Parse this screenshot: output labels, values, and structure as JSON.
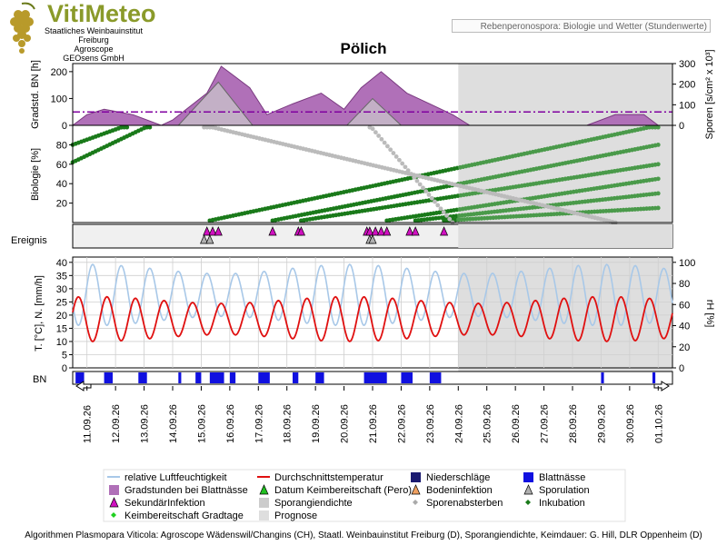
{
  "logo": {
    "brand": "VitiMeteo",
    "lines": [
      "Staatliches Weinbauinstitut Freiburg",
      "Agroscope",
      "GEOsens GmbH"
    ]
  },
  "subtitle": "Rebenperonospora: Biologie und Wetter (Stundenwerte)",
  "station": "Pölich",
  "footer": "Algorithmen Plasmopara Viticola: Agroscope Wädenswil/Changins (CH), Staatl. Weinbauinstitut Freiburg (D), Sporangiendichte, Keimdauer: G. Hill, DLR Oppenheim (D)",
  "colors": {
    "gradstunden": "#b070b8",
    "sporangien": "#cccccc",
    "prognose": "#dedede",
    "inkubation": "#1a7a1a",
    "sporen": "#bbbbbb",
    "temp": "#e01010",
    "humidity": "#a8c8e8",
    "blattnaesse": "#1010e0",
    "threshold": "#8000a0"
  },
  "chart_data": [
    {
      "type": "area",
      "panel": "gradstunden",
      "ylabel_left": "Gradstd. BN [h]",
      "ylabel_right": "Sporen [s/cm² x 10³]",
      "yticks_left": [
        "200",
        "100",
        "0"
      ],
      "yticks_right": [
        "300",
        "200",
        "100",
        "0"
      ],
      "ylim_left": [
        0,
        230
      ],
      "ylim_right": [
        0,
        300
      ],
      "threshold": 50,
      "x_days": [
        10.5,
        11.0,
        11.6,
        12.6,
        13.6,
        14.0,
        15.2,
        15.7,
        16.7,
        17.3,
        18.2,
        19.2,
        20.0,
        20.6,
        21.3,
        22.2,
        23.0,
        23.8,
        24.4
      ],
      "gradstunden": [
        0,
        40,
        60,
        40,
        0,
        20,
        120,
        220,
        140,
        40,
        80,
        120,
        60,
        140,
        200,
        120,
        80,
        40,
        0
      ],
      "sporangien_x": [
        14.2,
        15.6,
        16.8,
        20.1,
        21.0,
        22.0
      ],
      "sporangien": [
        0,
        210,
        0,
        0,
        130,
        0
      ],
      "prognose_gradstunden_x": [
        28.5,
        29.5,
        30.5,
        31.0
      ],
      "prognose_gradstunden": [
        0,
        40,
        40,
        0
      ]
    },
    {
      "type": "line",
      "panel": "biologie",
      "ylabel": "Biologie [%]",
      "yticks": [
        "80",
        "60",
        "40",
        "20"
      ],
      "ylim": [
        0,
        100
      ],
      "series": [
        {
          "name": "Inkubation",
          "segments": [
            [
              10.5,
              80,
              12.4,
              100
            ],
            [
              10.5,
              62,
              13.2,
              100
            ],
            [
              15.3,
              2,
              31.0,
              100
            ],
            [
              17.5,
              2,
              31.0,
              80
            ],
            [
              18.5,
              2,
              31.0,
              60
            ],
            [
              21.5,
              2,
              31.0,
              45
            ],
            [
              22.5,
              2,
              31.0,
              30
            ],
            [
              23.5,
              2,
              31.0,
              15
            ]
          ]
        },
        {
          "name": "Sporenabsterben",
          "segments": [
            [
              15.1,
              100,
              29.5,
              0
            ],
            [
              20.9,
              100,
              23.8,
              0
            ]
          ]
        }
      ]
    },
    {
      "type": "scatter",
      "panel": "ereignis",
      "label": "Ereignis",
      "sekundaerinfektion_x": [
        15.2,
        15.4,
        15.6,
        17.5,
        18.4,
        18.5,
        20.8,
        20.9,
        21.1,
        21.3,
        21.5,
        22.3,
        22.5,
        23.5
      ],
      "sporulation_x": [
        15.1,
        15.3,
        20.9,
        21.0
      ]
    },
    {
      "type": "line",
      "panel": "wetter",
      "ylabel_left": "T. [°C], N. [mm/h]",
      "ylabel_right": "rH [%]",
      "yticks_left": [
        "40",
        "35",
        "30",
        "25",
        "20",
        "15",
        "10",
        "5",
        "0"
      ],
      "yticks_right": [
        "100",
        "80",
        "60",
        "40",
        "20",
        "0"
      ],
      "ylim_left": [
        0,
        42
      ],
      "ylim_right": [
        0,
        105
      ],
      "series": [
        {
          "name": "relative Luftfeuchtigkeit",
          "axis": "right",
          "min": 40,
          "max": 98
        },
        {
          "name": "Durchschnittstemperatur",
          "axis": "left",
          "min": 10,
          "max": 27
        }
      ]
    },
    {
      "type": "bar",
      "panel": "blattnaesse",
      "label": "BN",
      "intervals": [
        [
          10.6,
          10.9
        ],
        [
          11.6,
          11.9
        ],
        [
          12.8,
          13.1
        ],
        [
          14.2,
          14.3
        ],
        [
          14.8,
          15.0
        ],
        [
          15.3,
          15.8
        ],
        [
          16.0,
          16.2
        ],
        [
          17.0,
          17.4
        ],
        [
          18.2,
          18.4
        ],
        [
          19.0,
          19.3
        ],
        [
          20.7,
          21.5
        ],
        [
          22.0,
          22.4
        ],
        [
          23.0,
          23.4
        ],
        [
          29.0,
          29.1
        ],
        [
          30.8,
          30.9
        ]
      ]
    }
  ],
  "x_axis": {
    "labels": [
      "11.09.26",
      "12.09.26",
      "13.09.26",
      "14.09.26",
      "15.09.26",
      "16.09.26",
      "17.09.26",
      "18.09.26",
      "19.09.26",
      "20.09.26",
      "21.09.26",
      "22.09.26",
      "23.09.26",
      "24.09.26",
      "25.09.26",
      "26.09.26",
      "27.09.26",
      "28.09.26",
      "29.09.26",
      "30.09.26",
      "01.10.26"
    ],
    "start_day": 10.5,
    "end_day": 31.5,
    "prognose_start_day": 24.0
  },
  "legend": [
    {
      "label": "relative Luftfeuchtigkeit",
      "symbol": "line-humidity"
    },
    {
      "label": "Durchschnittstemperatur",
      "symbol": "line-temp"
    },
    {
      "label": "Niederschläge",
      "symbol": "square-navy"
    },
    {
      "label": "Blattnässe",
      "symbol": "square-blue"
    },
    {
      "label": "Gradstunden bei Blattnässe",
      "symbol": "square-purple"
    },
    {
      "label": "Datum Keimbereitschaft (Pero)",
      "symbol": "triangle-green"
    },
    {
      "label": "Bodeninfektion",
      "symbol": "triangle-orange"
    },
    {
      "label": "Sporulation",
      "symbol": "triangle-gray"
    },
    {
      "label": "SekundärInfektion",
      "symbol": "triangle-magenta"
    },
    {
      "label": "Sporangiendichte",
      "symbol": "square-lightgray"
    },
    {
      "label": "Sporenabsterben",
      "symbol": "diamond-gray"
    },
    {
      "label": "Inkubation",
      "symbol": "diamond-green"
    },
    {
      "label": "Keimbereitschaft Gradtage",
      "symbol": "diamond-lightgreen"
    },
    {
      "label": "Prognose",
      "symbol": "square-prognose"
    }
  ]
}
